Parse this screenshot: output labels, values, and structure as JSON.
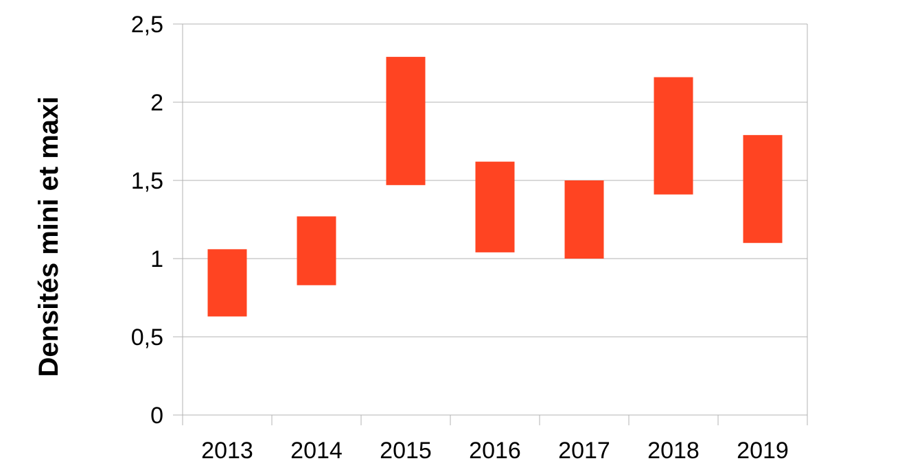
{
  "chart_data": {
    "type": "bar",
    "subtype": "floating-range",
    "title": "",
    "xlabel": "",
    "ylabel": "Densités mini et maxi",
    "categories": [
      "2013",
      "2014",
      "2015",
      "2016",
      "2017",
      "2018",
      "2019"
    ],
    "series": [
      {
        "min": [
          0.63,
          0.83,
          1.47,
          1.04,
          1.0,
          1.41,
          1.1
        ],
        "max": [
          1.06,
          1.27,
          2.29,
          1.62,
          1.5,
          2.16,
          1.79
        ]
      }
    ],
    "ylim": [
      0,
      2.5
    ],
    "yticks": [
      "0",
      "0,5",
      "1",
      "1,5",
      "2",
      "2,5"
    ],
    "ytick_values": [
      0,
      0.5,
      1,
      1.5,
      2,
      2.5
    ],
    "grid": true,
    "legend": "none",
    "colors": {
      "bar": "#ff4422",
      "grid": "#b3b3b3",
      "axis": "#b3b3b3"
    }
  }
}
